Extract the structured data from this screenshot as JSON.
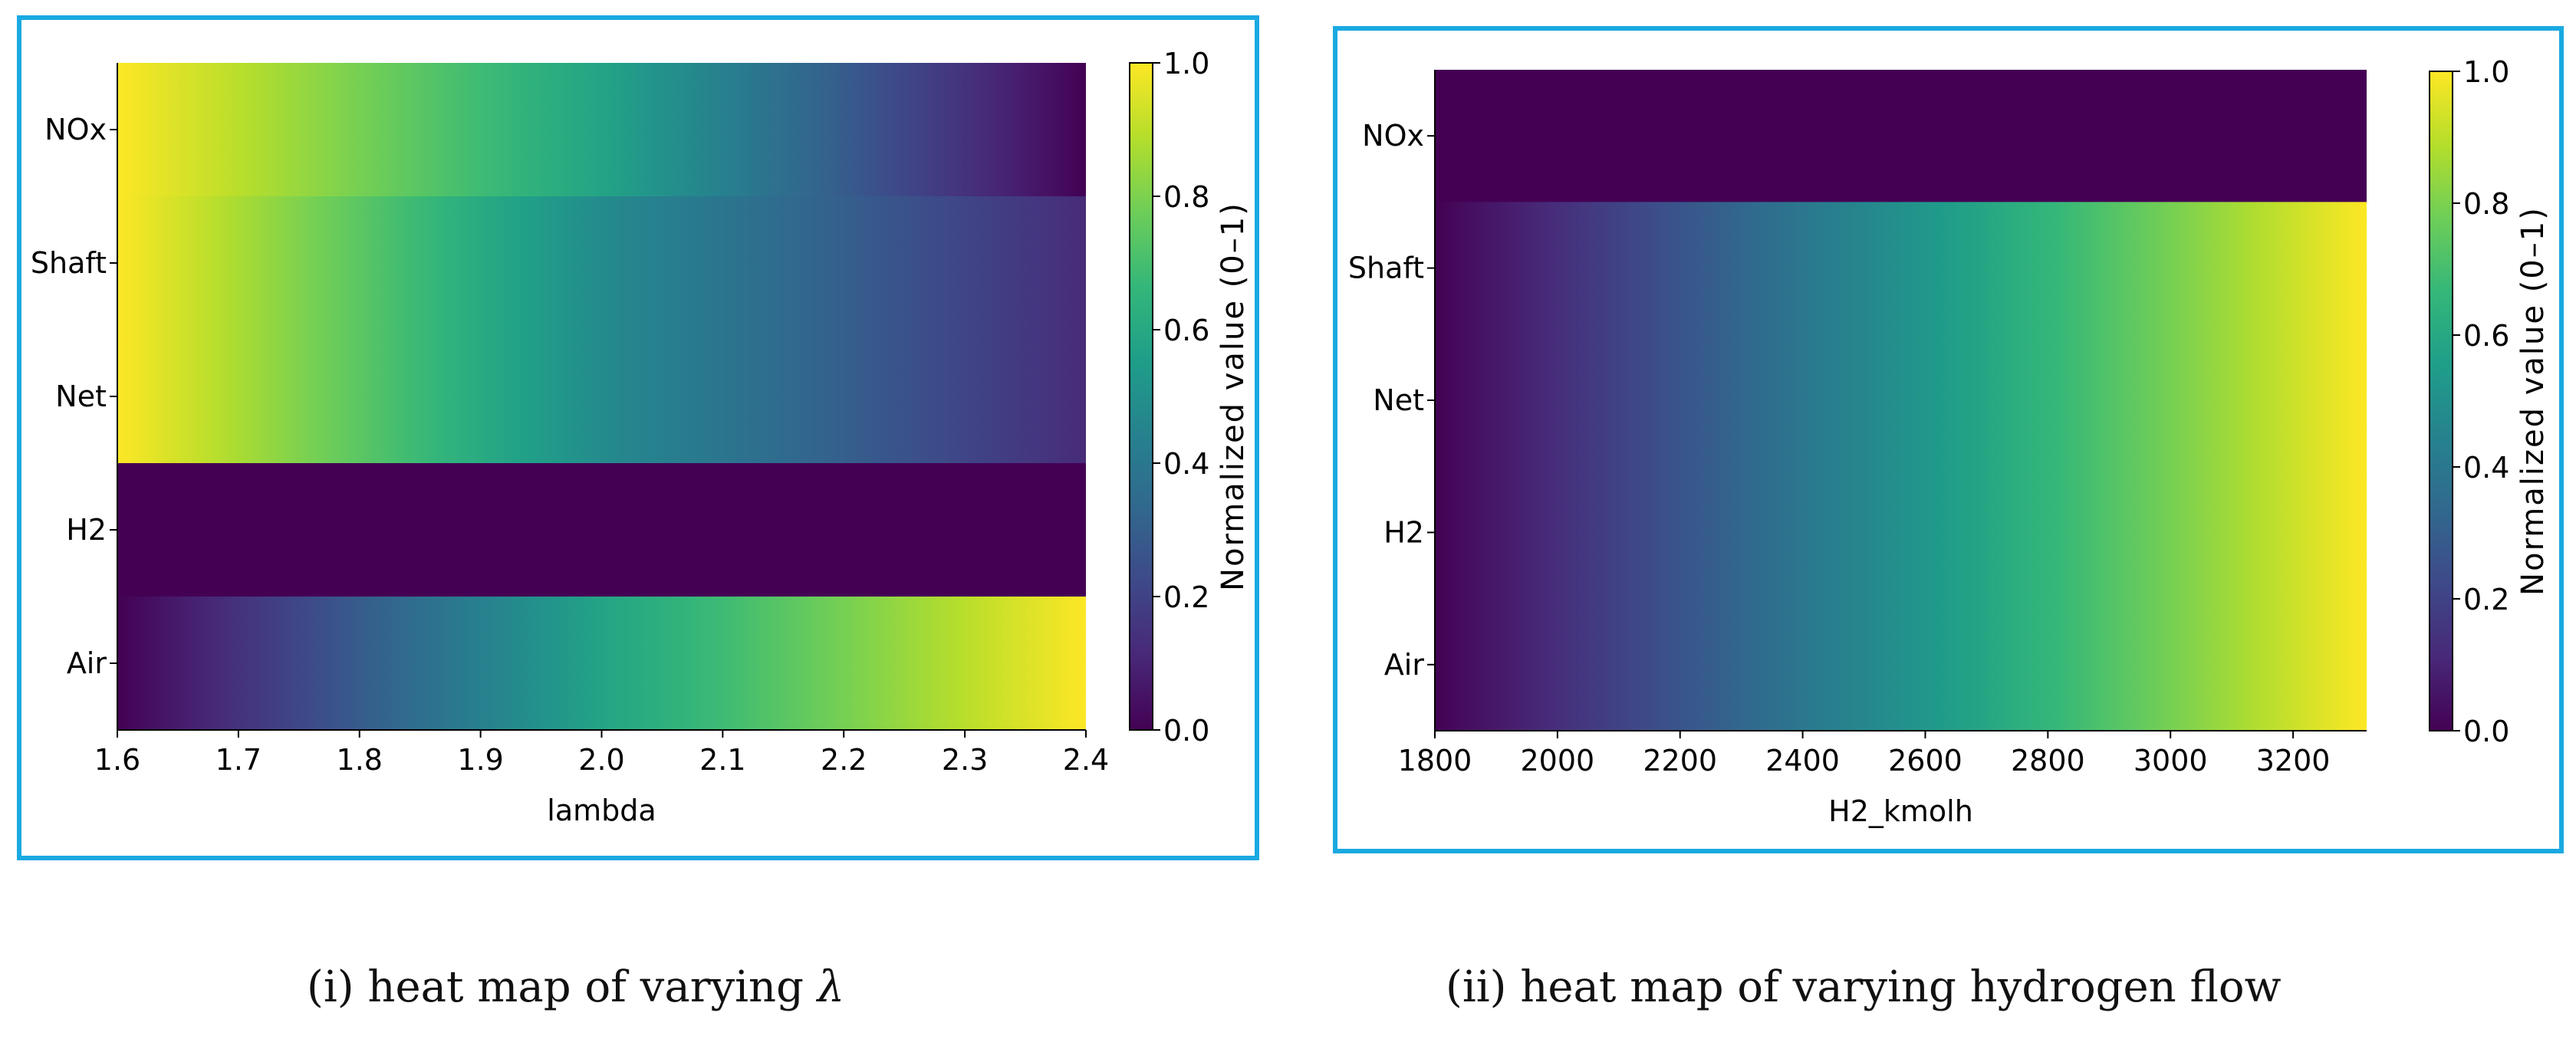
{
  "chart_data": [
    {
      "type": "heatmap",
      "panel": "left",
      "xlabel": "lambda",
      "ylabel": "",
      "xlim": [
        1.6,
        2.4
      ],
      "xticks": [
        "1.6",
        "1.7",
        "1.8",
        "1.9",
        "2.0",
        "2.1",
        "2.2",
        "2.3",
        "2.4"
      ],
      "rows": [
        "NOx",
        "Shaft",
        "Net",
        "H2",
        "Air"
      ],
      "value_range": [
        0,
        1
      ],
      "row_profiles": [
        {
          "name": "NOx",
          "values": [
            1.0,
            0.58,
            0.0
          ]
        },
        {
          "name": "Shaft",
          "values": [
            1.0,
            0.48,
            0.12
          ]
        },
        {
          "name": "Net",
          "values": [
            1.0,
            0.48,
            0.12
          ]
        },
        {
          "name": "H2",
          "values": [
            0.0,
            0.0,
            0.0
          ]
        },
        {
          "name": "Air",
          "values": [
            0.0,
            0.58,
            1.0
          ]
        }
      ],
      "colorbar": {
        "label": "Normalized value (0–1)",
        "ticks": [
          "0.0",
          "0.2",
          "0.4",
          "0.6",
          "0.8",
          "1.0"
        ]
      }
    },
    {
      "type": "heatmap",
      "panel": "right",
      "xlabel": "H2_kmolh",
      "ylabel": "",
      "xlim": [
        1800,
        3320
      ],
      "xticks": [
        "1800",
        "2000",
        "2200",
        "2400",
        "2600",
        "2800",
        "3000",
        "3200"
      ],
      "rows": [
        "NOx",
        "Shaft",
        "Net",
        "H2",
        "Air"
      ],
      "value_range": [
        0,
        1
      ],
      "row_profiles": [
        {
          "name": "NOx",
          "values": [
            0.0,
            0.0,
            0.0
          ]
        },
        {
          "name": "Shaft",
          "values": [
            0.0,
            0.5,
            1.0
          ]
        },
        {
          "name": "Net",
          "values": [
            0.0,
            0.5,
            1.0
          ]
        },
        {
          "name": "H2",
          "values": [
            0.0,
            0.5,
            1.0
          ]
        },
        {
          "name": "Air",
          "values": [
            0.0,
            0.5,
            1.0
          ]
        }
      ],
      "colorbar": {
        "label": "Normalized value (0–1)",
        "ticks": [
          "0.0",
          "0.2",
          "0.4",
          "0.6",
          "0.8",
          "1.0"
        ]
      }
    }
  ],
  "captions": {
    "left_prefix": "(i) heat map of varying ",
    "left_symbol": "λ",
    "right": "(ii) heat map of varying hydrogen flow"
  },
  "colors": {
    "frame": "#1aa9e1",
    "viridis": [
      "#440154",
      "#482878",
      "#3e4989",
      "#31688e",
      "#26828e",
      "#1f9e89",
      "#35b779",
      "#6ece58",
      "#b5de2b",
      "#fde725"
    ]
  }
}
